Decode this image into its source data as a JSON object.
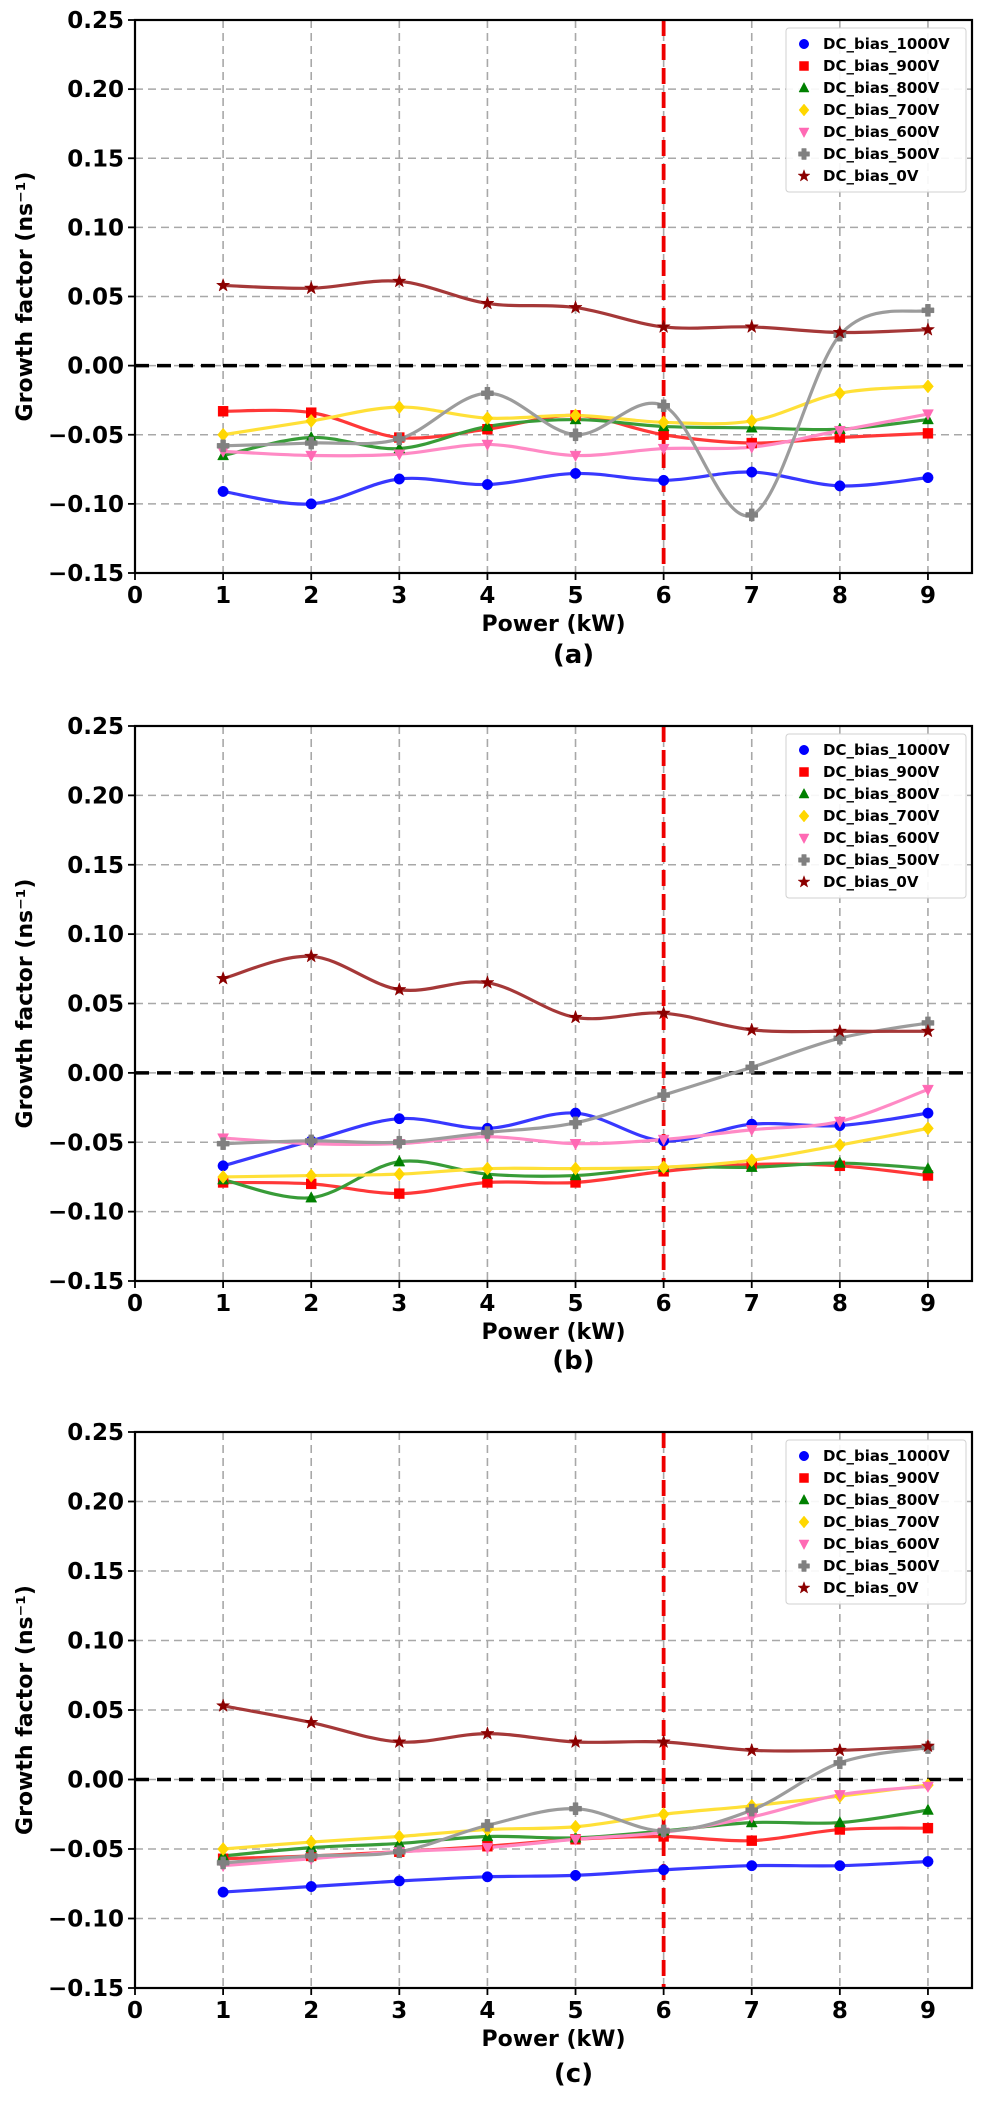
{
  "chart_data": [
    {
      "type": "line",
      "caption": "(a)",
      "xlabel": "Power (kW)",
      "ylabel": "Growth factor (ns⁻¹)",
      "xlim": [
        0,
        9.5
      ],
      "ylim": [
        -0.15,
        0.25
      ],
      "xticks": [
        "0",
        "1",
        "2",
        "3",
        "4",
        "5",
        "6",
        "7",
        "8",
        "9"
      ],
      "yticks": [
        "0.25",
        "0.20",
        "0.15",
        "0.10",
        "0.05",
        "0.00",
        "−0.05",
        "−0.10",
        "−0.15"
      ],
      "grid": true,
      "legend_position": "top-right",
      "reference_lines": {
        "horizontal_y": 0,
        "vertical_x": 6
      },
      "x": [
        1,
        2,
        3,
        4,
        5,
        6,
        7,
        8,
        9
      ],
      "series": [
        {
          "name": "DC_bias_1000V",
          "color": "#0000ff",
          "marker": "circle",
          "values": [
            -0.091,
            -0.1,
            -0.082,
            -0.086,
            -0.078,
            -0.083,
            -0.077,
            -0.087,
            -0.081
          ]
        },
        {
          "name": "DC_bias_900V",
          "color": "#ff0000",
          "marker": "square",
          "values": [
            -0.033,
            -0.034,
            -0.052,
            -0.046,
            -0.036,
            -0.05,
            -0.056,
            -0.052,
            -0.049
          ]
        },
        {
          "name": "DC_bias_800V",
          "color": "#008000",
          "marker": "triangle-up",
          "values": [
            -0.065,
            -0.052,
            -0.06,
            -0.044,
            -0.039,
            -0.044,
            -0.045,
            -0.046,
            -0.039
          ]
        },
        {
          "name": "DC_bias_700V",
          "color": "#ffd700",
          "marker": "diamond",
          "values": [
            -0.05,
            -0.04,
            -0.03,
            -0.038,
            -0.036,
            -0.041,
            -0.04,
            -0.02,
            -0.015
          ]
        },
        {
          "name": "DC_bias_600V",
          "color": "#ff69b4",
          "marker": "triangle-down",
          "values": [
            -0.062,
            -0.065,
            -0.064,
            -0.057,
            -0.065,
            -0.06,
            -0.059,
            -0.047,
            -0.035
          ]
        },
        {
          "name": "DC_bias_500V",
          "color": "#808080",
          "marker": "plus",
          "values": [
            -0.058,
            -0.056,
            -0.053,
            -0.02,
            -0.05,
            -0.029,
            -0.108,
            0.022,
            0.04
          ]
        },
        {
          "name": "DC_bias_0V",
          "color": "#8b0000",
          "marker": "star",
          "values": [
            0.058,
            0.056,
            0.061,
            0.045,
            0.042,
            0.028,
            0.028,
            0.024,
            0.026
          ]
        }
      ]
    },
    {
      "type": "line",
      "caption": "(b)",
      "xlabel": "Power (kW)",
      "ylabel": "Growth factor (ns⁻¹)",
      "xlim": [
        0,
        9.5
      ],
      "ylim": [
        -0.15,
        0.25
      ],
      "xticks": [
        "0",
        "1",
        "2",
        "3",
        "4",
        "5",
        "6",
        "7",
        "8",
        "9"
      ],
      "yticks": [
        "0.25",
        "0.20",
        "0.15",
        "0.10",
        "0.05",
        "0.00",
        "−0.05",
        "−0.10",
        "−0.15"
      ],
      "grid": true,
      "legend_position": "top-right",
      "reference_lines": {
        "horizontal_y": 0,
        "vertical_x": 6
      },
      "x": [
        1,
        2,
        3,
        4,
        5,
        6,
        7,
        8,
        9
      ],
      "series": [
        {
          "name": "DC_bias_1000V",
          "color": "#0000ff",
          "marker": "circle",
          "values": [
            -0.067,
            -0.049,
            -0.033,
            -0.04,
            -0.029,
            -0.049,
            -0.037,
            -0.038,
            -0.029
          ]
        },
        {
          "name": "DC_bias_900V",
          "color": "#ff0000",
          "marker": "square",
          "values": [
            -0.079,
            -0.08,
            -0.087,
            -0.079,
            -0.079,
            -0.071,
            -0.066,
            -0.067,
            -0.074
          ]
        },
        {
          "name": "DC_bias_800V",
          "color": "#008000",
          "marker": "triangle-up",
          "values": [
            -0.077,
            -0.09,
            -0.064,
            -0.073,
            -0.074,
            -0.068,
            -0.068,
            -0.065,
            -0.069
          ]
        },
        {
          "name": "DC_bias_700V",
          "color": "#ffd700",
          "marker": "diamond",
          "values": [
            -0.075,
            -0.074,
            -0.073,
            -0.069,
            -0.069,
            -0.068,
            -0.063,
            -0.052,
            -0.04
          ]
        },
        {
          "name": "DC_bias_600V",
          "color": "#ff69b4",
          "marker": "triangle-down",
          "values": [
            -0.047,
            -0.051,
            -0.051,
            -0.046,
            -0.051,
            -0.048,
            -0.041,
            -0.035,
            -0.012
          ]
        },
        {
          "name": "DC_bias_500V",
          "color": "#808080",
          "marker": "plus",
          "values": [
            -0.051,
            -0.049,
            -0.05,
            -0.043,
            -0.036,
            -0.016,
            0.004,
            0.025,
            0.036
          ]
        },
        {
          "name": "DC_bias_0V",
          "color": "#8b0000",
          "marker": "star",
          "values": [
            0.068,
            0.084,
            0.06,
            0.065,
            0.04,
            0.043,
            0.031,
            0.03,
            0.03
          ]
        }
      ]
    },
    {
      "type": "line",
      "caption": "(c)",
      "xlabel": "Power (kW)",
      "ylabel": "Growth factor (ns⁻¹)",
      "xlim": [
        0,
        9.5
      ],
      "ylim": [
        -0.15,
        0.25
      ],
      "xticks": [
        "0",
        "1",
        "2",
        "3",
        "4",
        "5",
        "6",
        "7",
        "8",
        "9"
      ],
      "yticks": [
        "0.25",
        "0.20",
        "0.15",
        "0.10",
        "0.05",
        "0.00",
        "−0.05",
        "−0.10",
        "−0.15"
      ],
      "grid": true,
      "legend_position": "top-right",
      "reference_lines": {
        "horizontal_y": 0,
        "vertical_x": 6
      },
      "x": [
        1,
        2,
        3,
        4,
        5,
        6,
        7,
        8,
        9
      ],
      "series": [
        {
          "name": "DC_bias_1000V",
          "color": "#0000ff",
          "marker": "circle",
          "values": [
            -0.081,
            -0.077,
            -0.073,
            -0.07,
            -0.069,
            -0.065,
            -0.062,
            -0.062,
            -0.059
          ]
        },
        {
          "name": "DC_bias_900V",
          "color": "#ff0000",
          "marker": "square",
          "values": [
            -0.057,
            -0.055,
            -0.052,
            -0.048,
            -0.043,
            -0.041,
            -0.044,
            -0.036,
            -0.035
          ]
        },
        {
          "name": "DC_bias_800V",
          "color": "#008000",
          "marker": "triangle-up",
          "values": [
            -0.055,
            -0.049,
            -0.046,
            -0.041,
            -0.042,
            -0.037,
            -0.031,
            -0.031,
            -0.022
          ]
        },
        {
          "name": "DC_bias_700V",
          "color": "#ffd700",
          "marker": "diamond",
          "values": [
            -0.05,
            -0.045,
            -0.041,
            -0.036,
            -0.034,
            -0.025,
            -0.019,
            -0.012,
            -0.004
          ]
        },
        {
          "name": "DC_bias_600V",
          "color": "#ff69b4",
          "marker": "triangle-down",
          "values": [
            -0.062,
            -0.057,
            -0.052,
            -0.049,
            -0.043,
            -0.038,
            -0.027,
            -0.011,
            -0.005
          ]
        },
        {
          "name": "DC_bias_500V",
          "color": "#808080",
          "marker": "plus",
          "values": [
            -0.06,
            -0.055,
            -0.052,
            -0.033,
            -0.021,
            -0.037,
            -0.022,
            0.012,
            0.023
          ]
        },
        {
          "name": "DC_bias_0V",
          "color": "#8b0000",
          "marker": "star",
          "values": [
            0.053,
            0.041,
            0.027,
            0.033,
            0.027,
            0.027,
            0.021,
            0.021,
            0.024
          ]
        }
      ]
    }
  ]
}
